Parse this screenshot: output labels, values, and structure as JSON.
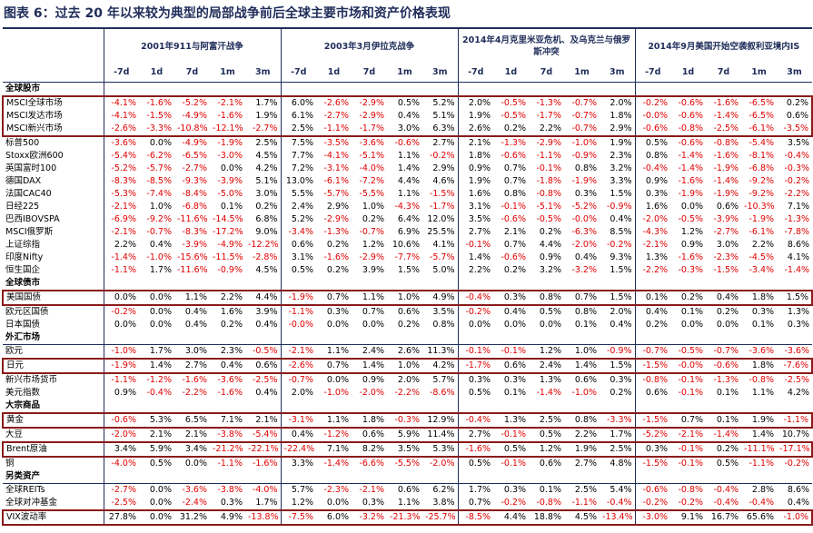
{
  "title": "图表 6：过去 20 年以来较为典型的局部战争前后全球主要市场和资产价格表现",
  "groups": [
    "2001年911与阿富汗战争",
    "2003年3月伊拉克战争",
    "2014年4月克里米亚危机、及乌克兰与俄罗斯冲突",
    "2014年9月美国开始空袭叙利亚境内IS"
  ],
  "periods": [
    "-7d",
    "1d",
    "7d",
    "1m",
    "3m"
  ],
  "sections": [
    {
      "title": "全球股市",
      "rows": [
        {
          "label": "MSCI全球市场",
          "highlight": true,
          "values": [
            "-4.1%",
            "-1.6%",
            "-5.2%",
            "-2.1%",
            "1.7%",
            "6.0%",
            "-2.6%",
            "-2.9%",
            "0.5%",
            "5.2%",
            "2.0%",
            "-0.5%",
            "-1.3%",
            "-0.7%",
            "2.0%",
            "-0.2%",
            "-0.6%",
            "-1.6%",
            "-6.5%",
            "0.2%"
          ]
        },
        {
          "label": "MSCI发达市场",
          "highlight": true,
          "values": [
            "-4.1%",
            "-1.5%",
            "-4.9%",
            "-1.6%",
            "1.9%",
            "6.1%",
            "-2.7%",
            "-2.9%",
            "0.4%",
            "5.1%",
            "1.9%",
            "-0.5%",
            "-1.7%",
            "-0.7%",
            "1.8%",
            "-0.0%",
            "-0.6%",
            "-1.4%",
            "-6.5%",
            "0.6%"
          ]
        },
        {
          "label": "MSCI新兴市场",
          "highlight": true,
          "values": [
            "-2.6%",
            "-3.3%",
            "-10.8%",
            "-12.1%",
            "-2.7%",
            "2.5%",
            "-1.1%",
            "-1.7%",
            "3.0%",
            "6.3%",
            "2.6%",
            "0.2%",
            "2.2%",
            "-0.7%",
            "2.9%",
            "-0.6%",
            "-0.8%",
            "-2.5%",
            "-6.1%",
            "-3.5%"
          ]
        },
        {
          "label": "标普500",
          "values": [
            "-3.6%",
            "0.0%",
            "-4.9%",
            "-1.9%",
            "2.5%",
            "7.5%",
            "-3.5%",
            "-3.6%",
            "-0.6%",
            "2.7%",
            "2.1%",
            "-1.3%",
            "-2.9%",
            "-1.0%",
            "1.9%",
            "0.5%",
            "-0.6%",
            "-0.8%",
            "-5.4%",
            "3.5%"
          ]
        },
        {
          "label": "Stoxx欧洲600",
          "values": [
            "-5.4%",
            "-6.2%",
            "-6.5%",
            "-3.0%",
            "4.5%",
            "7.7%",
            "-4.1%",
            "-5.1%",
            "1.1%",
            "-0.2%",
            "1.8%",
            "-0.6%",
            "-1.1%",
            "-0.9%",
            "2.3%",
            "0.8%",
            "-1.4%",
            "-1.6%",
            "-8.1%",
            "-0.4%"
          ]
        },
        {
          "label": "英国富时100",
          "values": [
            "-5.2%",
            "-5.7%",
            "-2.7%",
            "0.0%",
            "4.2%",
            "7.2%",
            "-3.1%",
            "-4.0%",
            "1.4%",
            "2.9%",
            "0.9%",
            "0.7%",
            "-0.1%",
            "0.8%",
            "3.2%",
            "-0.4%",
            "-1.4%",
            "-1.9%",
            "-6.8%",
            "-0.3%"
          ]
        },
        {
          "label": "德国DAX",
          "values": [
            "-8.3%",
            "-8.5%",
            "-9.3%",
            "-3.9%",
            "5.1%",
            "13.0%",
            "-6.1%",
            "-7.2%",
            "4.4%",
            "4.6%",
            "1.9%",
            "0.7%",
            "-1.8%",
            "-1.9%",
            "3.3%",
            "0.9%",
            "-1.6%",
            "-1.4%",
            "-9.2%",
            "-0.2%"
          ]
        },
        {
          "label": "法国CAC40",
          "values": [
            "-5.3%",
            "-7.4%",
            "-8.4%",
            "-5.0%",
            "3.0%",
            "5.5%",
            "-5.7%",
            "-5.5%",
            "1.1%",
            "-1.5%",
            "1.6%",
            "0.8%",
            "-0.8%",
            "0.3%",
            "1.5%",
            "0.3%",
            "-1.9%",
            "-1.9%",
            "-9.2%",
            "-2.2%"
          ]
        },
        {
          "label": "日经225",
          "values": [
            "-2.1%",
            "1.0%",
            "-6.8%",
            "0.1%",
            "0.2%",
            "2.4%",
            "2.9%",
            "1.0%",
            "-4.3%",
            "-1.7%",
            "3.1%",
            "-0.1%",
            "-5.1%",
            "-5.2%",
            "-0.9%",
            "1.6%",
            "0.0%",
            "0.6%",
            "-10.3%",
            "7.1%"
          ]
        },
        {
          "label": "巴西IBOVSPA",
          "values": [
            "-6.9%",
            "-9.2%",
            "-11.6%",
            "-14.5%",
            "6.8%",
            "5.2%",
            "-2.9%",
            "0.2%",
            "6.4%",
            "12.0%",
            "3.5%",
            "-0.6%",
            "-0.5%",
            "-0.0%",
            "0.4%",
            "-2.0%",
            "-0.5%",
            "-3.9%",
            "-1.9%",
            "-1.3%"
          ]
        },
        {
          "label": "MSCI俄罗斯",
          "values": [
            "-2.1%",
            "-0.7%",
            "-8.3%",
            "-17.2%",
            "9.0%",
            "-3.4%",
            "-1.3%",
            "-0.7%",
            "6.9%",
            "25.5%",
            "2.7%",
            "2.1%",
            "0.2%",
            "-6.3%",
            "8.5%",
            "-4.3%",
            "1.2%",
            "-2.7%",
            "-6.1%",
            "-7.8%"
          ]
        },
        {
          "label": "上证综指",
          "values": [
            "2.2%",
            "0.4%",
            "-3.9%",
            "-4.9%",
            "-12.2%",
            "0.6%",
            "0.2%",
            "1.2%",
            "10.6%",
            "4.1%",
            "-0.1%",
            "0.7%",
            "4.4%",
            "-2.0%",
            "-0.2%",
            "-2.1%",
            "0.9%",
            "3.0%",
            "2.2%",
            "8.6%"
          ]
        },
        {
          "label": "印度Nifty",
          "values": [
            "-1.4%",
            "-1.0%",
            "-15.6%",
            "-11.5%",
            "-2.8%",
            "3.1%",
            "-1.6%",
            "-2.9%",
            "-7.7%",
            "-5.7%",
            "1.4%",
            "-0.6%",
            "0.9%",
            "0.4%",
            "9.3%",
            "1.3%",
            "-1.6%",
            "-2.3%",
            "-4.5%",
            "4.1%"
          ]
        },
        {
          "label": "恒生国企",
          "values": [
            "-1.1%",
            "1.7%",
            "-11.6%",
            "-0.9%",
            "4.5%",
            "0.5%",
            "0.2%",
            "3.9%",
            "1.5%",
            "5.0%",
            "2.2%",
            "0.2%",
            "3.2%",
            "-3.2%",
            "1.5%",
            "-2.2%",
            "-0.3%",
            "-1.5%",
            "-3.4%",
            "-1.4%"
          ]
        }
      ]
    },
    {
      "title": "全球债市",
      "rows": [
        {
          "label": "美国国债",
          "highlight": true,
          "values": [
            "0.0%",
            "0.0%",
            "1.1%",
            "2.2%",
            "4.4%",
            "-1.9%",
            "0.7%",
            "1.1%",
            "1.0%",
            "4.9%",
            "-0.4%",
            "0.3%",
            "0.8%",
            "0.7%",
            "1.5%",
            "0.1%",
            "0.2%",
            "0.4%",
            "1.8%",
            "1.5%"
          ]
        },
        {
          "label": "欧元区国债",
          "values": [
            "-0.2%",
            "0.0%",
            "0.4%",
            "1.6%",
            "3.9%",
            "-1.1%",
            "0.3%",
            "0.7%",
            "0.6%",
            "3.5%",
            "-0.2%",
            "0.4%",
            "0.5%",
            "0.8%",
            "2.0%",
            "0.4%",
            "0.1%",
            "0.2%",
            "0.3%",
            "1.3%"
          ]
        },
        {
          "label": "日本国债",
          "values": [
            "0.0%",
            "0.0%",
            "0.4%",
            "0.2%",
            "0.4%",
            "-0.0%",
            "0.0%",
            "0.0%",
            "0.2%",
            "0.8%",
            "0.0%",
            "0.0%",
            "0.0%",
            "0.1%",
            "0.4%",
            "0.2%",
            "0.0%",
            "0.0%",
            "0.1%",
            "0.3%"
          ]
        }
      ]
    },
    {
      "title": "外汇市场",
      "rows": [
        {
          "label": "欧元",
          "values": [
            "-1.0%",
            "1.7%",
            "3.0%",
            "2.3%",
            "-0.5%",
            "-2.1%",
            "1.1%",
            "2.4%",
            "2.6%",
            "11.3%",
            "-0.1%",
            "-0.1%",
            "1.2%",
            "1.0%",
            "-0.9%",
            "-0.7%",
            "-0.5%",
            "-0.7%",
            "-3.6%",
            "-3.6%"
          ]
        },
        {
          "label": "日元",
          "highlight": true,
          "values": [
            "-1.9%",
            "1.4%",
            "2.7%",
            "0.4%",
            "0.6%",
            "-2.6%",
            "0.7%",
            "1.4%",
            "1.0%",
            "4.2%",
            "-1.7%",
            "0.6%",
            "2.4%",
            "1.4%",
            "1.5%",
            "-1.5%",
            "-0.0%",
            "-0.6%",
            "1.8%",
            "-7.6%"
          ]
        },
        {
          "label": "新兴市场货币",
          "values": [
            "-1.1%",
            "-1.2%",
            "-1.6%",
            "-3.6%",
            "-2.5%",
            "-0.7%",
            "0.0%",
            "0.9%",
            "2.0%",
            "5.7%",
            "0.3%",
            "0.3%",
            "1.3%",
            "0.6%",
            "0.3%",
            "-0.8%",
            "-0.1%",
            "-1.3%",
            "-0.8%",
            "-2.5%"
          ]
        },
        {
          "label": "美元指数",
          "values": [
            "0.9%",
            "-0.4%",
            "-2.2%",
            "-1.6%",
            "0.4%",
            "2.0%",
            "-1.0%",
            "-2.0%",
            "-2.2%",
            "-8.6%",
            "0.5%",
            "0.1%",
            "-1.4%",
            "-1.0%",
            "0.2%",
            "0.6%",
            "-0.1%",
            "0.1%",
            "1.1%",
            "4.2%"
          ]
        }
      ]
    },
    {
      "title": "大宗商品",
      "rows": [
        {
          "label": "黄金",
          "highlight": true,
          "values": [
            "-0.6%",
            "5.3%",
            "6.5%",
            "7.1%",
            "2.1%",
            "-3.1%",
            "1.1%",
            "1.8%",
            "-0.3%",
            "12.9%",
            "-0.4%",
            "1.3%",
            "2.5%",
            "0.8%",
            "-3.3%",
            "-1.5%",
            "0.7%",
            "0.1%",
            "1.9%",
            "-1.1%"
          ]
        },
        {
          "label": "大豆",
          "values": [
            "-2.0%",
            "2.1%",
            "2.1%",
            "-3.8%",
            "-5.4%",
            "0.4%",
            "-1.2%",
            "0.6%",
            "5.9%",
            "11.4%",
            "2.7%",
            "-0.1%",
            "0.5%",
            "2.2%",
            "1.7%",
            "-5.2%",
            "-2.1%",
            "-1.4%",
            "1.4%",
            "10.7%"
          ]
        },
        {
          "label": "Brent原油",
          "highlight": true,
          "values": [
            "3.4%",
            "5.9%",
            "3.4%",
            "-21.2%",
            "-22.1%",
            "-22.4%",
            "7.1%",
            "8.2%",
            "3.5%",
            "5.3%",
            "-1.6%",
            "0.5%",
            "1.2%",
            "1.9%",
            "2.5%",
            "0.3%",
            "-0.1%",
            "0.2%",
            "-11.1%",
            "-17.1%"
          ]
        },
        {
          "label": "铜",
          "values": [
            "-4.0%",
            "0.5%",
            "0.0%",
            "-1.1%",
            "-1.6%",
            "3.3%",
            "-1.4%",
            "-6.6%",
            "-5.5%",
            "-2.0%",
            "0.5%",
            "-0.1%",
            "0.6%",
            "2.7%",
            "4.8%",
            "-1.5%",
            "-0.1%",
            "0.5%",
            "-1.1%",
            "-0.2%"
          ]
        }
      ]
    },
    {
      "title": "另类资产",
      "rows": [
        {
          "label": "全球REITs",
          "values": [
            "-2.7%",
            "0.0%",
            "-3.6%",
            "-3.8%",
            "-4.0%",
            "5.7%",
            "-2.3%",
            "-2.1%",
            "0.6%",
            "6.2%",
            "1.7%",
            "0.3%",
            "0.1%",
            "2.5%",
            "5.4%",
            "-0.6%",
            "-0.8%",
            "-0.4%",
            "2.8%",
            "8.6%"
          ]
        },
        {
          "label": "全球对冲基金",
          "values": [
            "-2.5%",
            "0.0%",
            "-2.4%",
            "0.3%",
            "1.7%",
            "1.2%",
            "0.0%",
            "0.3%",
            "1.1%",
            "3.8%",
            "0.7%",
            "-0.2%",
            "-0.8%",
            "-1.1%",
            "-0.4%",
            "-0.2%",
            "-0.2%",
            "-0.4%",
            "-0.4%",
            "0.4%"
          ]
        },
        {
          "label": "VIX波动率",
          "highlight": true,
          "values": [
            "27.8%",
            "0.0%",
            "31.2%",
            "4.9%",
            "-13.8%",
            "-7.5%",
            "6.0%",
            "-3.2%",
            "-21.3%",
            "-25.7%",
            "-8.5%",
            "4.4%",
            "18.8%",
            "4.5%",
            "-13.4%",
            "-3.0%",
            "9.1%",
            "16.7%",
            "65.6%",
            "-1.0%"
          ]
        }
      ]
    }
  ]
}
